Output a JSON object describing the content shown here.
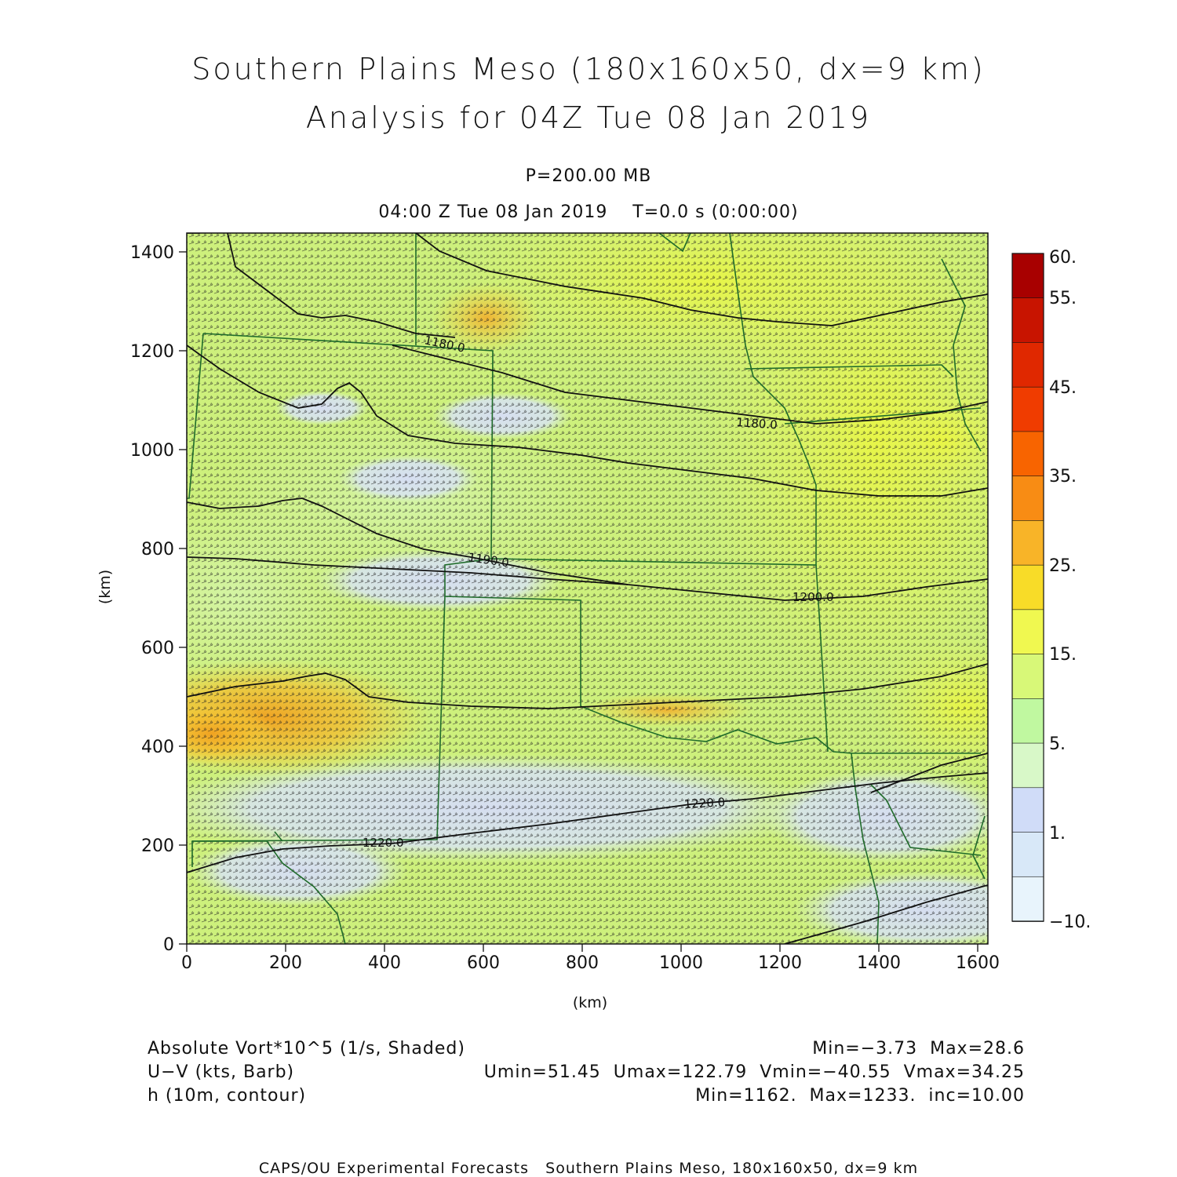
{
  "title_line1": "Southern Plains Meso (180x160x50, dx=9 km)",
  "title_line2": "Analysis for 04Z Tue 08 Jan 2019",
  "level_label": "P=200.00 MB",
  "time_label": "04:00 Z Tue 08 Jan 2019    T=0.0 s (0:00:00)",
  "x_axis_label": "(km)",
  "y_axis_label": "(km)",
  "x_ticks": [
    "0",
    "200",
    "400",
    "600",
    "800",
    "1000",
    "1200",
    "1400",
    "1600"
  ],
  "y_ticks": [
    "0",
    "200",
    "400",
    "600",
    "800",
    "1000",
    "1200",
    "1400"
  ],
  "colorbar_labels": [
    "60.",
    "55.",
    "45.",
    "35.",
    "25.",
    "15.",
    "5.",
    "1.",
    "−10."
  ],
  "colorbar_colors": [
    "#a80000",
    "#c81400",
    "#e02800",
    "#f03c00",
    "#f86400",
    "#f88c14",
    "#f8b428",
    "#f8dc28",
    "#f0f850",
    "#d8f878",
    "#c0f8a0",
    "#d8f8c8",
    "#d0dcf8",
    "#d8e8f8",
    "#e8f4fc"
  ],
  "contour_labels": [
    "1180.0",
    "1180.0",
    "1190.0",
    "1200.0",
    "1220.0",
    "1220.0"
  ],
  "legend": {
    "row1_left": "Absolute Vort*10^5 (1/s, Shaded)",
    "row1_right": "Min=−3.73  Max=28.6",
    "row2_left": "U−V (kts, Barb)",
    "row2_right": "Umin=51.45  Umax=122.79  Vmin=−40.55  Vmax=34.25",
    "row3_left": "h (10m, contour)",
    "row3_right": "Min=1162.  Max=1233.  inc=10.00"
  },
  "footer": "CAPS/OU Experimental Forecasts   Southern Plains Meso, 180x160x50, dx=9 km"
}
